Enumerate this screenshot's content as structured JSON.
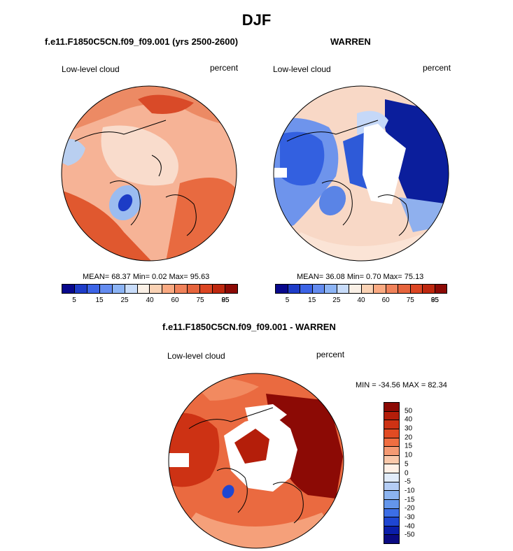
{
  "title": "DJF",
  "panels": {
    "left": {
      "title": "f.e11.F1850C5CN.f09_f09.001 (yrs 2500-2600)",
      "variable": "Low-level cloud",
      "units": "percent",
      "stats": "MEAN= 68.37  Min=  0.02  Max= 95.63"
    },
    "right": {
      "title": "WARREN",
      "variable": "Low-level cloud",
      "units": "percent",
      "stats": "MEAN= 36.08  Min=  0.70  Max= 75.13"
    },
    "diff": {
      "title": "f.e11.F1850C5CN.f09_f09.001 - WARREN",
      "variable": "Low-level cloud",
      "units": "percent",
      "stats": "MIN = -34.56 MAX =  82.34"
    }
  },
  "colorbar_abs": {
    "colors": [
      "#08088c",
      "#1e3cc8",
      "#3c64e6",
      "#648cf0",
      "#8cb4f5",
      "#c8dcfa",
      "#faf0e6",
      "#fad2b4",
      "#faaa82",
      "#f0825a",
      "#e6643c",
      "#dc4623",
      "#be280f",
      "#8c0a05"
    ],
    "tick_labels": [
      "5",
      "15",
      "25",
      "40",
      "60",
      "75",
      "85",
      "95"
    ]
  },
  "colorbar_diff": {
    "colors": [
      "#8c0a05",
      "#b41e0a",
      "#cd3214",
      "#e14b23",
      "#f06e41",
      "#f59a73",
      "#fac8aa",
      "#fff0e6",
      "#e1ecfa",
      "#b4cdf5",
      "#8cb4f0",
      "#6496eb",
      "#3c6ee6",
      "#1e46d2",
      "#0a1eaa",
      "#0a0a82"
    ],
    "tick_labels": [
      "50",
      "40",
      "30",
      "20",
      "15",
      "10",
      "5",
      "0",
      "-5",
      "-10",
      "-15",
      "-20",
      "-30",
      "-40",
      "-50"
    ]
  },
  "chart_data": [
    {
      "type": "heatmap",
      "title": "f.e11.F1850C5CN.f09_f09.001 (yrs 2500-2600)",
      "variable": "Low-level cloud",
      "units": "percent",
      "projection": "polar stereographic (Northern Hemisphere)",
      "mean": 68.37,
      "min": 0.02,
      "max": 95.63,
      "levels": [
        5,
        15,
        25,
        40,
        60,
        75,
        85,
        95
      ]
    },
    {
      "type": "heatmap",
      "title": "WARREN",
      "variable": "Low-level cloud",
      "units": "percent",
      "projection": "polar stereographic (Northern Hemisphere)",
      "mean": 36.08,
      "min": 0.7,
      "max": 75.13,
      "levels": [
        5,
        15,
        25,
        40,
        60,
        75,
        85,
        95
      ]
    },
    {
      "type": "heatmap",
      "title": "f.e11.F1850C5CN.f09_f09.001 - WARREN",
      "variable": "Low-level cloud",
      "units": "percent",
      "projection": "polar stereographic (Northern Hemisphere)",
      "min": -34.56,
      "max": 82.34,
      "levels": [
        50,
        40,
        30,
        20,
        15,
        10,
        5,
        0,
        -5,
        -10,
        -15,
        -20,
        -30,
        -40,
        -50
      ]
    }
  ]
}
